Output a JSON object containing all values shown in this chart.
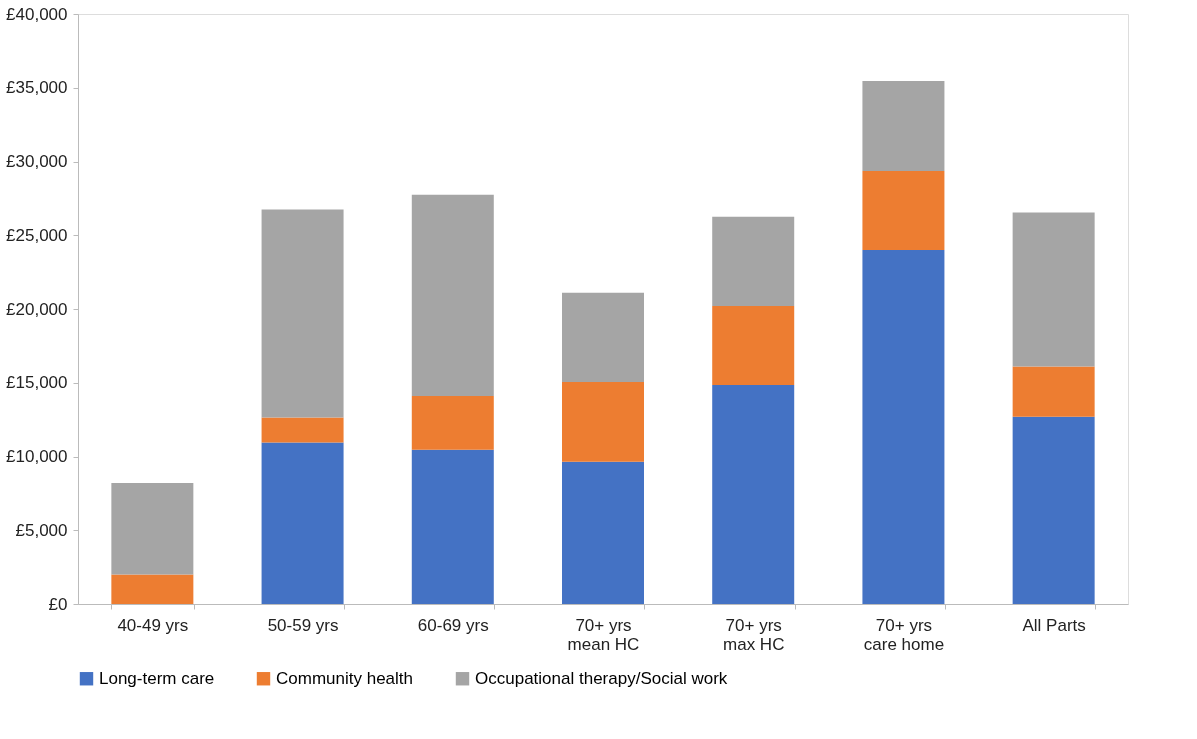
{
  "chart_data": {
    "type": "bar",
    "stacked": true,
    "categories": [
      "40-49 yrs",
      "50-59 yrs",
      "60-69 yrs",
      "70+ yrs\nmean HC",
      "70+ yrs\nmax HC",
      "70+ yrs\ncare home",
      "All Parts"
    ],
    "series": [
      {
        "name": "Long-term care",
        "color": "#4472c4",
        "values": [
          0,
          10950,
          10450,
          9650,
          14850,
          24000,
          12700
        ]
      },
      {
        "name": "Community health",
        "color": "#ed7d31",
        "values": [
          2000,
          1700,
          3650,
          5400,
          5350,
          5350,
          3400
        ]
      },
      {
        "name": "Occupational therapy/Social work",
        "color": "#a5a5a5",
        "values": [
          6200,
          14100,
          13650,
          6050,
          6050,
          6100,
          10450
        ]
      }
    ],
    "ylim": [
      0,
      40000
    ],
    "yticks": [
      {
        "value": 0,
        "label": "£0"
      },
      {
        "value": 5000,
        "label": "£5,000"
      },
      {
        "value": 10000,
        "label": "£10,000"
      },
      {
        "value": 15000,
        "label": "£15,000"
      },
      {
        "value": 20000,
        "label": "£20,000"
      },
      {
        "value": 25000,
        "label": "£25,000"
      },
      {
        "value": 30000,
        "label": "£30,000"
      },
      {
        "value": 35000,
        "label": "£35,000"
      },
      {
        "value": 40000,
        "label": "£40,000"
      }
    ],
    "grid": false,
    "legend": "bottom"
  }
}
